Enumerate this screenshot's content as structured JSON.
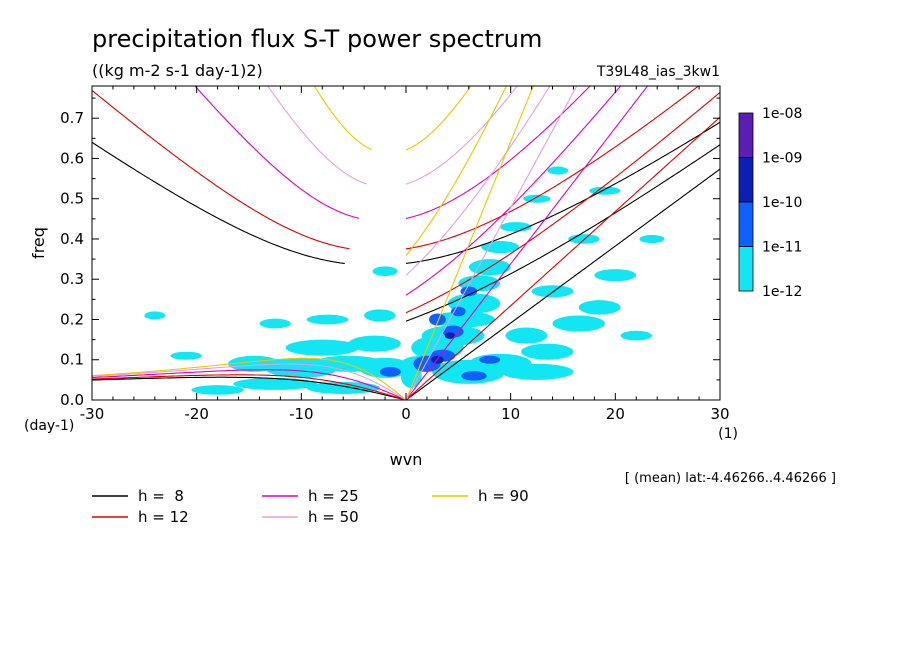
{
  "chart_data": {
    "type": "heatmap",
    "title": "precipitation flux S-T power spectrum",
    "subtitle": "((kg m-2 s-1 day-1)2)",
    "run_label": "T39L48_ias_3kw1",
    "xlabel": "wvn",
    "ylabel": "freq",
    "x_unit": "(1)",
    "y_unit": "(day-1)",
    "xlim": [
      -30,
      30
    ],
    "ylim": [
      0,
      0.78
    ],
    "x_ticks": [
      -30,
      -20,
      -10,
      0,
      10,
      20,
      30
    ],
    "x_tick_labels": [
      "-30",
      "-20",
      "-10",
      "0",
      "10",
      "20",
      "30"
    ],
    "y_ticks": [
      0,
      0.1,
      0.2,
      0.3,
      0.4,
      0.5,
      0.6,
      0.7
    ],
    "y_tick_labels": [
      "0.0",
      "0.1",
      "0.2",
      "0.3",
      "0.4",
      "0.5",
      "0.6",
      "0.7"
    ],
    "note": "[ (mean) lat:-4.46266..4.46266 ]",
    "colorbar": {
      "labels": [
        "1e-08",
        "1e-09",
        "1e-10",
        "1e-11",
        "1e-12"
      ],
      "colors": [
        "#5a1fb0",
        "#0b1fb4",
        "#1060ff",
        "#12e6f2"
      ]
    },
    "dispersion_curves": [
      {
        "label": "h =  8",
        "h": 8,
        "color": "#000000"
      },
      {
        "label": "h = 12",
        "h": 12,
        "color": "#e00000"
      },
      {
        "label": "h = 25",
        "h": 25,
        "color": "#e000c0"
      },
      {
        "label": "h = 50",
        "h": 50,
        "color": "#e2a0e2"
      },
      {
        "label": "h = 90",
        "h": 90,
        "color": "#e8c800"
      }
    ],
    "contour_regions": [
      {
        "level": 1,
        "x": 0.5,
        "y": 0.06,
        "rx": 1.0,
        "ry": 0.03
      },
      {
        "level": 1,
        "x": 1.5,
        "y": 0.09,
        "rx": 2.0,
        "ry": 0.02
      },
      {
        "level": 1,
        "x": 3.0,
        "y": 0.13,
        "rx": 2.5,
        "ry": 0.03
      },
      {
        "level": 1,
        "x": 4.5,
        "y": 0.16,
        "rx": 3.0,
        "ry": 0.025
      },
      {
        "level": 1,
        "x": 5.5,
        "y": 0.2,
        "rx": 3.0,
        "ry": 0.02
      },
      {
        "level": 1,
        "x": 6.5,
        "y": 0.24,
        "rx": 2.5,
        "ry": 0.025
      },
      {
        "level": 1,
        "x": 7.0,
        "y": 0.29,
        "rx": 2.0,
        "ry": 0.02
      },
      {
        "level": 1,
        "x": 8.0,
        "y": 0.33,
        "rx": 2.0,
        "ry": 0.02
      },
      {
        "level": 1,
        "x": 9.0,
        "y": 0.38,
        "rx": 1.8,
        "ry": 0.015
      },
      {
        "level": 1,
        "x": 10.5,
        "y": 0.43,
        "rx": 1.5,
        "ry": 0.012
      },
      {
        "level": 1,
        "x": 12.5,
        "y": 0.5,
        "rx": 1.3,
        "ry": 0.01
      },
      {
        "level": 1,
        "x": 14.5,
        "y": 0.57,
        "rx": 1.0,
        "ry": 0.01
      },
      {
        "level": 1,
        "x": 6.0,
        "y": 0.07,
        "rx": 3.5,
        "ry": 0.03
      },
      {
        "level": 1,
        "x": 9.0,
        "y": 0.09,
        "rx": 3.0,
        "ry": 0.025
      },
      {
        "level": 1,
        "x": 12.5,
        "y": 0.07,
        "rx": 3.5,
        "ry": 0.02
      },
      {
        "level": 1,
        "x": 13.5,
        "y": 0.12,
        "rx": 2.5,
        "ry": 0.02
      },
      {
        "level": 1,
        "x": 11.5,
        "y": 0.16,
        "rx": 2.0,
        "ry": 0.02
      },
      {
        "level": 1,
        "x": 16.5,
        "y": 0.19,
        "rx": 2.5,
        "ry": 0.02
      },
      {
        "level": 1,
        "x": 18.5,
        "y": 0.23,
        "rx": 2.0,
        "ry": 0.018
      },
      {
        "level": 1,
        "x": 14.0,
        "y": 0.27,
        "rx": 2.0,
        "ry": 0.015
      },
      {
        "level": 1,
        "x": 20.0,
        "y": 0.31,
        "rx": 2.0,
        "ry": 0.015
      },
      {
        "level": 1,
        "x": 17.0,
        "y": 0.4,
        "rx": 1.5,
        "ry": 0.012
      },
      {
        "level": 1,
        "x": 19.0,
        "y": 0.52,
        "rx": 1.5,
        "ry": 0.01
      },
      {
        "level": 1,
        "x": 23.5,
        "y": 0.4,
        "rx": 1.2,
        "ry": 0.01
      },
      {
        "level": 1,
        "x": 22.0,
        "y": 0.16,
        "rx": 1.5,
        "ry": 0.012
      },
      {
        "level": 1,
        "x": -2.0,
        "y": 0.08,
        "rx": 2.5,
        "ry": 0.025
      },
      {
        "level": 1,
        "x": -5.5,
        "y": 0.09,
        "rx": 3.5,
        "ry": 0.02
      },
      {
        "level": 1,
        "x": -10.0,
        "y": 0.08,
        "rx": 3.5,
        "ry": 0.025
      },
      {
        "level": 1,
        "x": -14.5,
        "y": 0.09,
        "rx": 2.5,
        "ry": 0.02
      },
      {
        "level": 1,
        "x": -8.0,
        "y": 0.13,
        "rx": 3.5,
        "ry": 0.02
      },
      {
        "level": 1,
        "x": -3.0,
        "y": 0.14,
        "rx": 2.5,
        "ry": 0.02
      },
      {
        "level": 1,
        "x": -12.5,
        "y": 0.04,
        "rx": 4.0,
        "ry": 0.015
      },
      {
        "level": 1,
        "x": -6.0,
        "y": 0.03,
        "rx": 3.5,
        "ry": 0.015
      },
      {
        "level": 1,
        "x": -18.0,
        "y": 0.025,
        "rx": 2.5,
        "ry": 0.012
      },
      {
        "level": 1,
        "x": -2.5,
        "y": 0.21,
        "rx": 1.5,
        "ry": 0.015
      },
      {
        "level": 1,
        "x": -7.5,
        "y": 0.2,
        "rx": 2.0,
        "ry": 0.012
      },
      {
        "level": 1,
        "x": -12.5,
        "y": 0.19,
        "rx": 1.5,
        "ry": 0.012
      },
      {
        "level": 1,
        "x": -2.0,
        "y": 0.32,
        "rx": 1.2,
        "ry": 0.012
      },
      {
        "level": 1,
        "x": -21.0,
        "y": 0.11,
        "rx": 1.5,
        "ry": 0.01
      },
      {
        "level": 1,
        "x": -24.0,
        "y": 0.21,
        "rx": 1.0,
        "ry": 0.01
      },
      {
        "level": 2,
        "x": 2.0,
        "y": 0.09,
        "rx": 1.3,
        "ry": 0.02
      },
      {
        "level": 2,
        "x": 3.5,
        "y": 0.11,
        "rx": 1.2,
        "ry": 0.015
      },
      {
        "level": 2,
        "x": 4.5,
        "y": 0.17,
        "rx": 1.0,
        "ry": 0.015
      },
      {
        "level": 2,
        "x": 3.0,
        "y": 0.2,
        "rx": 0.8,
        "ry": 0.015
      },
      {
        "level": 2,
        "x": 6.0,
        "y": 0.27,
        "rx": 0.8,
        "ry": 0.012
      },
      {
        "level": 2,
        "x": 6.5,
        "y": 0.06,
        "rx": 1.2,
        "ry": 0.012
      },
      {
        "level": 2,
        "x": 8.0,
        "y": 0.1,
        "rx": 1.0,
        "ry": 0.01
      },
      {
        "level": 2,
        "x": -1.5,
        "y": 0.07,
        "rx": 1.0,
        "ry": 0.012
      },
      {
        "level": 2,
        "x": 5.0,
        "y": 0.22,
        "rx": 0.7,
        "ry": 0.012
      },
      {
        "level": 3,
        "x": 3.0,
        "y": 0.1,
        "rx": 0.6,
        "ry": 0.01
      },
      {
        "level": 3,
        "x": 4.2,
        "y": 0.16,
        "rx": 0.5,
        "ry": 0.008
      }
    ]
  }
}
